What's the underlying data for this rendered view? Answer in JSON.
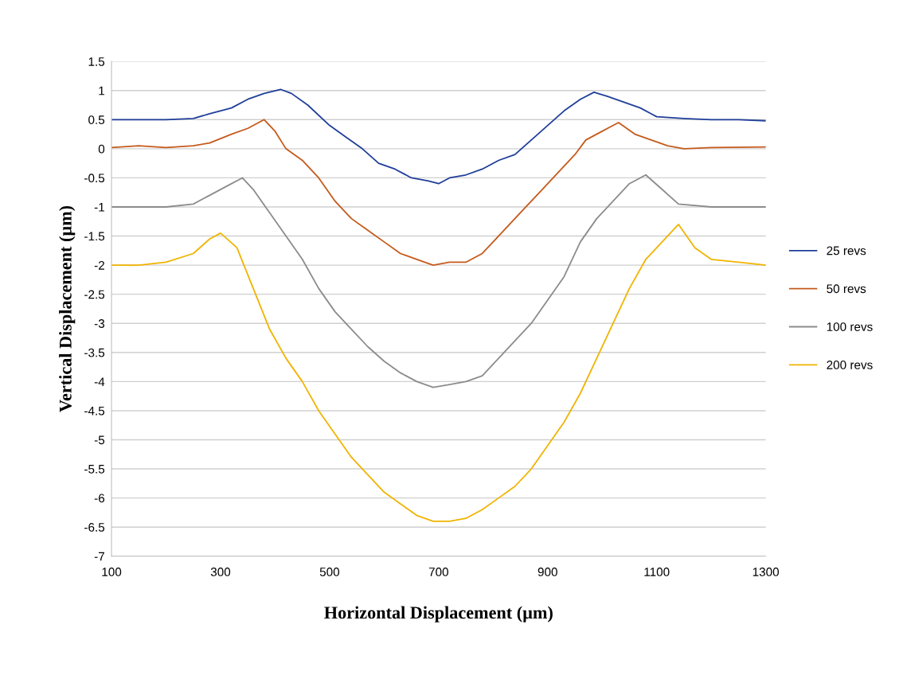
{
  "chart_data": {
    "type": "line",
    "xlabel": "Horizontal Displacement (µm)",
    "ylabel": "Vertical Displacement (µm)",
    "xlim": [
      100,
      1300
    ],
    "xticks": [
      100,
      300,
      500,
      700,
      900,
      1100,
      1300
    ],
    "ylim": [
      -7,
      1.5
    ],
    "yticks": [
      -7,
      -6.5,
      -6,
      -5.5,
      -5,
      -4.5,
      -4,
      -3.5,
      -3,
      -2.5,
      -2,
      -1.5,
      -1,
      -0.5,
      0,
      0.5,
      1,
      1.5
    ],
    "grid": "y",
    "legend": "right",
    "marker": "none",
    "line_style": "solid",
    "series": [
      {
        "name": "25 revs",
        "color": "#203f9a",
        "x": [
          100,
          150,
          200,
          250,
          280,
          320,
          350,
          380,
          410,
          430,
          460,
          500,
          530,
          560,
          590,
          620,
          650,
          680,
          700,
          720,
          750,
          780,
          810,
          840,
          870,
          900,
          930,
          960,
          985,
          1010,
          1040,
          1070,
          1090,
          1100,
          1150,
          1200,
          1250,
          1300
        ],
        "values": [
          0.5,
          0.5,
          0.5,
          0.52,
          0.6,
          0.7,
          0.85,
          0.95,
          1.02,
          0.95,
          0.75,
          0.4,
          0.2,
          0.0,
          -0.25,
          -0.35,
          -0.5,
          -0.55,
          -0.6,
          -0.5,
          -0.45,
          -0.35,
          -0.2,
          -0.1,
          0.15,
          0.4,
          0.65,
          0.85,
          0.97,
          0.9,
          0.8,
          0.7,
          0.6,
          0.55,
          0.52,
          0.5,
          0.5,
          0.48
        ]
      },
      {
        "name": "50 revs",
        "color": "#c55a1c",
        "x": [
          100,
          150,
          200,
          250,
          280,
          320,
          350,
          380,
          400,
          420,
          450,
          480,
          510,
          540,
          570,
          600,
          630,
          660,
          690,
          720,
          750,
          780,
          800,
          830,
          860,
          890,
          920,
          950,
          970,
          1000,
          1030,
          1060,
          1090,
          1120,
          1150,
          1200,
          1300
        ],
        "values": [
          0.02,
          0.05,
          0.02,
          0.05,
          0.1,
          0.25,
          0.35,
          0.5,
          0.3,
          0.0,
          -0.2,
          -0.5,
          -0.9,
          -1.2,
          -1.4,
          -1.6,
          -1.8,
          -1.9,
          -2.0,
          -1.95,
          -1.95,
          -1.8,
          -1.6,
          -1.3,
          -1.0,
          -0.7,
          -0.4,
          -0.1,
          0.15,
          0.3,
          0.45,
          0.25,
          0.15,
          0.05,
          0.0,
          0.02,
          0.03
        ]
      },
      {
        "name": "100 revs",
        "color": "#8c8c8c",
        "x": [
          100,
          150,
          200,
          250,
          280,
          310,
          340,
          360,
          390,
          420,
          450,
          480,
          510,
          540,
          570,
          600,
          630,
          660,
          690,
          720,
          750,
          780,
          810,
          840,
          870,
          900,
          930,
          960,
          990,
          1020,
          1050,
          1080,
          1110,
          1140,
          1200,
          1300
        ],
        "values": [
          -1.0,
          -1.0,
          -1.0,
          -0.95,
          -0.8,
          -0.65,
          -0.5,
          -0.7,
          -1.1,
          -1.5,
          -1.9,
          -2.4,
          -2.8,
          -3.1,
          -3.4,
          -3.65,
          -3.85,
          -4.0,
          -4.1,
          -4.05,
          -4.0,
          -3.9,
          -3.6,
          -3.3,
          -3.0,
          -2.6,
          -2.2,
          -1.6,
          -1.2,
          -0.9,
          -0.6,
          -0.45,
          -0.7,
          -0.95,
          -1.0,
          -1.0
        ]
      },
      {
        "name": "200 revs",
        "color": "#f0b400",
        "x": [
          100,
          150,
          200,
          250,
          280,
          300,
          330,
          360,
          390,
          420,
          450,
          480,
          510,
          540,
          570,
          600,
          630,
          660,
          690,
          720,
          750,
          780,
          810,
          840,
          870,
          900,
          930,
          960,
          990,
          1020,
          1050,
          1080,
          1110,
          1140,
          1170,
          1200,
          1250,
          1300
        ],
        "values": [
          -2.0,
          -2.0,
          -1.95,
          -1.8,
          -1.55,
          -1.45,
          -1.7,
          -2.4,
          -3.1,
          -3.6,
          -4.0,
          -4.5,
          -4.9,
          -5.3,
          -5.6,
          -5.9,
          -6.1,
          -6.3,
          -6.4,
          -6.4,
          -6.35,
          -6.2,
          -6.0,
          -5.8,
          -5.5,
          -5.1,
          -4.7,
          -4.2,
          -3.6,
          -3.0,
          -2.4,
          -1.9,
          -1.6,
          -1.3,
          -1.7,
          -1.9,
          -1.95,
          -2.0
        ]
      }
    ]
  }
}
